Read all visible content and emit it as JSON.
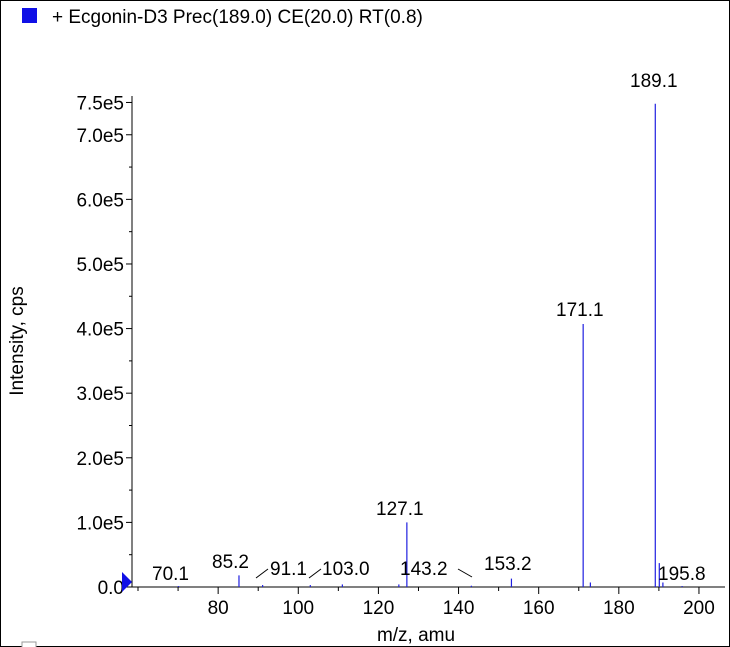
{
  "legend": {
    "marker_color": "#1010e6",
    "text": "+ Ecgonin-D3 Prec(189.0) CE(20.0) RT(0.8)"
  },
  "chart_data": {
    "type": "bar",
    "title": "+ Ecgonin-D3 Prec(189.0) CE(20.0) RT(0.8)",
    "xlabel": "m/z, amu",
    "ylabel": "Intensity, cps",
    "xlim": [
      58.5,
      206.5
    ],
    "ylim": [
      0,
      760000
    ],
    "x_ticks": [
      80,
      100,
      120,
      140,
      160,
      180,
      200
    ],
    "y_ticks": [
      0,
      100000,
      200000,
      300000,
      400000,
      500000,
      600000,
      700000,
      750000
    ],
    "y_tick_labels": [
      "0.0",
      "1.0e5",
      "2.0e5",
      "3.0e5",
      "4.0e5",
      "5.0e5",
      "6.0e5",
      "7.0e5",
      "7.5e5"
    ],
    "peak_color": "#1f1fe0",
    "series": [
      {
        "values": [
          {
            "x": 70.1,
            "y": 1500
          },
          {
            "x": 85.2,
            "y": 18000
          },
          {
            "x": 91.1,
            "y": 3000
          },
          {
            "x": 103.0,
            "y": 3000
          },
          {
            "x": 111.0,
            "y": 4000
          },
          {
            "x": 125.1,
            "y": 4000
          },
          {
            "x": 127.1,
            "y": 100000
          },
          {
            "x": 143.2,
            "y": 2000
          },
          {
            "x": 153.2,
            "y": 13000
          },
          {
            "x": 171.1,
            "y": 407000
          },
          {
            "x": 172.9,
            "y": 7000
          },
          {
            "x": 189.1,
            "y": 748000
          },
          {
            "x": 190.1,
            "y": 37000
          },
          {
            "x": 191.0,
            "y": 7000
          },
          {
            "x": 195.8,
            "y": 1500
          }
        ]
      }
    ],
    "peak_labels": [
      "70.1",
      "85.2",
      "91.1",
      "103.0",
      "127.1",
      "143.2",
      "153.2",
      "171.1",
      "189.1",
      "195.8"
    ]
  }
}
